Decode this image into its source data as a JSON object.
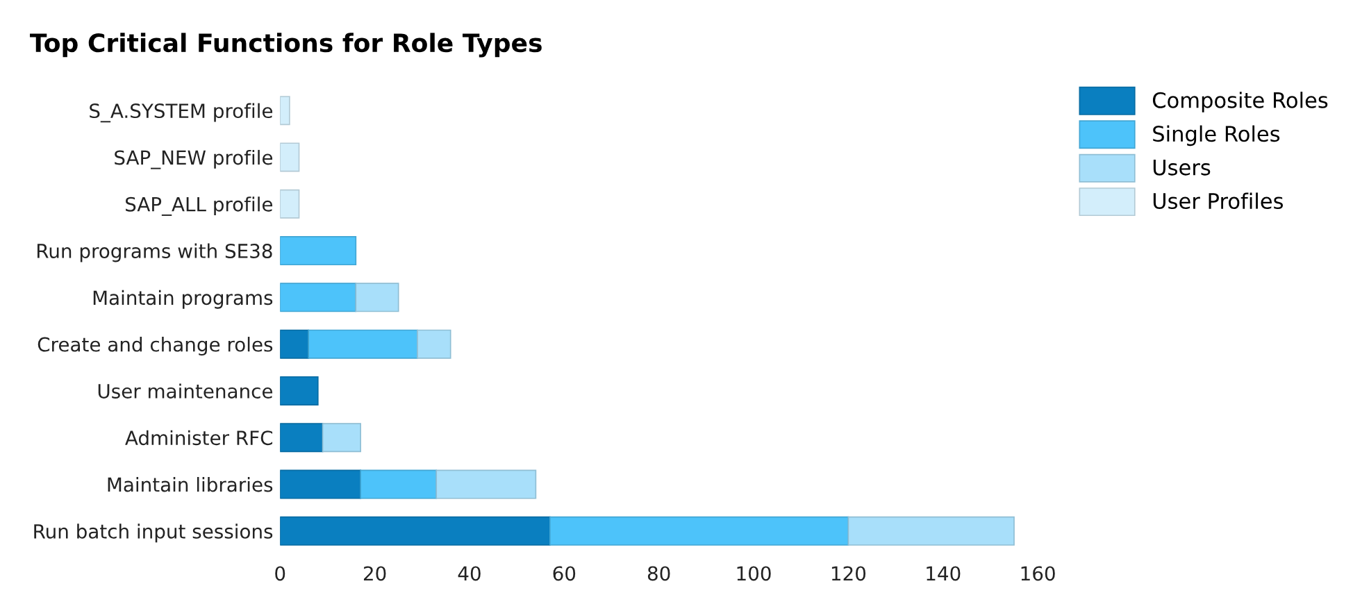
{
  "chart_data": {
    "type": "bar",
    "title": "Top Critical Functions for Role Types",
    "orientation": "horizontal",
    "stacked": true,
    "categories": [
      "S_A.SYSTEM profile",
      "SAP_NEW profile",
      "SAP_ALL profile",
      "Run programs with SE38",
      "Maintain programs",
      "Create and change roles",
      "User maintenance",
      "Administer RFC",
      "Maintain libraries",
      "Run batch input sessions"
    ],
    "series": [
      {
        "name": "Composite Roles",
        "color": "#0a7fc0",
        "values": [
          0,
          0,
          0,
          0,
          0,
          6,
          8,
          9,
          17,
          57
        ]
      },
      {
        "name": "Single Roles",
        "color": "#4dc3fa",
        "values": [
          0,
          0,
          0,
          16,
          16,
          23,
          0,
          0,
          16,
          63
        ]
      },
      {
        "name": "Users",
        "color": "#a8dffa",
        "values": [
          0,
          0,
          0,
          0,
          9,
          7,
          0,
          8,
          21,
          35
        ]
      },
      {
        "name": "User Profiles",
        "color": "#d3eefb",
        "values": [
          2,
          4,
          4,
          0,
          0,
          0,
          0,
          0,
          0,
          0
        ]
      }
    ],
    "xlim": [
      0,
      160
    ],
    "xticks": [
      0,
      20,
      40,
      60,
      80,
      100,
      120,
      140,
      160
    ],
    "grid": false,
    "legend": "top right"
  }
}
